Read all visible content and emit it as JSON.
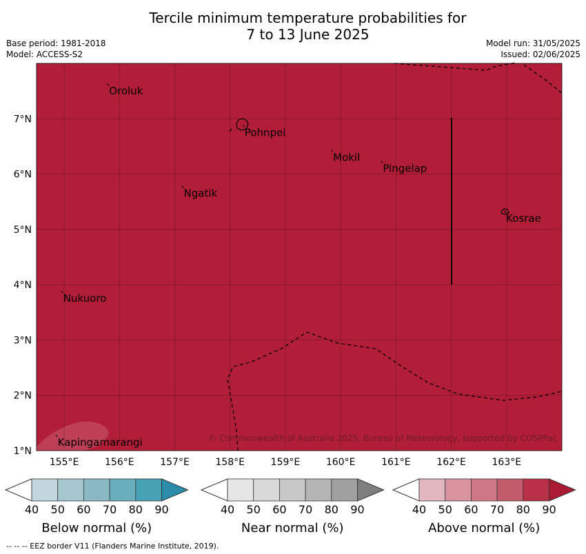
{
  "title": {
    "line1": "Tercile minimum temperature probabilities for",
    "line2": "7 to 13 June 2025"
  },
  "info_left": {
    "base_period": "Base period: 1981-2018",
    "model": "Model: ACCESS-S2"
  },
  "info_right": {
    "model_run": "Model run: 31/05/2025",
    "issued": "Issued: 02/06/2025"
  },
  "map": {
    "lon_range": [
      154.5,
      164.0
    ],
    "lat_range": [
      1.0,
      8.0
    ],
    "background_color": "#b21e38",
    "lon_ticks": [
      "155°E",
      "156°E",
      "157°E",
      "158°E",
      "159°E",
      "160°E",
      "161°E",
      "162°E",
      "163°E"
    ],
    "lat_ticks": [
      "1°N",
      "2°N",
      "3°N",
      "4°N",
      "5°N",
      "6°N",
      "7°N"
    ],
    "places": [
      {
        "name": "Oroluk",
        "lon": 155.8,
        "lat": 7.6
      },
      {
        "name": "Pohnpei",
        "lon": 158.25,
        "lat": 6.85
      },
      {
        "name": "Mokil",
        "lon": 159.85,
        "lat": 6.4
      },
      {
        "name": "Pingelap",
        "lon": 160.75,
        "lat": 6.2
      },
      {
        "name": "Ngatik",
        "lon": 157.15,
        "lat": 5.75
      },
      {
        "name": "Kosrae",
        "lon": 162.98,
        "lat": 5.3
      },
      {
        "name": "Nukuoro",
        "lon": 154.97,
        "lat": 3.85
      },
      {
        "name": "Kapingamarangi",
        "lon": 154.87,
        "lat": 1.25
      }
    ],
    "copyright": "© Commonwealth of Australia 2025, Bureau of Meteorology, supported by COSPPac"
  },
  "legends": [
    {
      "label": "Below normal (%)",
      "ticks": [
        "40",
        "50",
        "60",
        "70",
        "80",
        "90"
      ],
      "colors": [
        "#ffffff",
        "#c1d6dd",
        "#a7c7cf",
        "#8ab8c3",
        "#68aebd",
        "#46a1b5",
        "#2a8ca8"
      ]
    },
    {
      "label": "Near normal (%)",
      "ticks": [
        "40",
        "50",
        "60",
        "70",
        "80",
        "90"
      ],
      "colors": [
        "#ffffff",
        "#e6e6e6",
        "#d9d9d9",
        "#c8c8c8",
        "#b4b4b4",
        "#a0a0a0",
        "#7f7f7f"
      ]
    },
    {
      "label": "Above normal (%)",
      "ticks": [
        "40",
        "50",
        "60",
        "70",
        "80",
        "90"
      ],
      "colors": [
        "#ffffff",
        "#e2b7c0",
        "#d9949f",
        "#d07885",
        "#c45b6d",
        "#b83146",
        "#ab1a33"
      ]
    }
  ],
  "footnote": "--  --  -- EEZ border V11 (Flanders Marine Institute, 2019)."
}
